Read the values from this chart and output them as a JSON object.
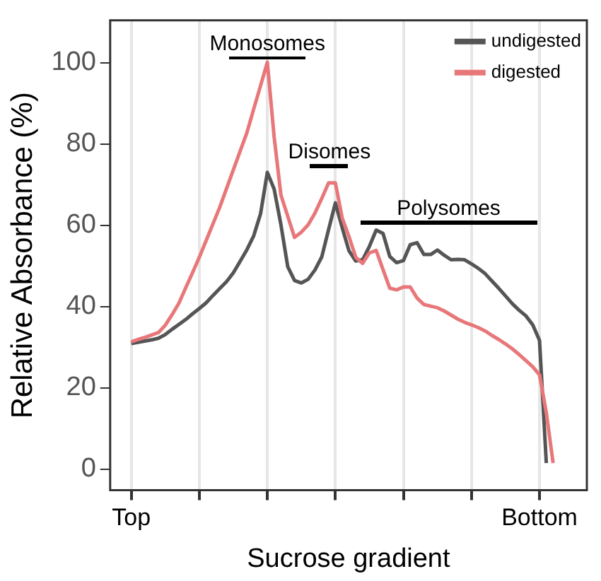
{
  "chart_data": {
    "type": "line",
    "xlabel": "Sucrose gradient",
    "ylabel": "Relative Absorbance (%)",
    "categories": [
      "Top",
      null,
      null,
      null,
      null,
      null,
      null,
      null,
      null,
      null,
      null,
      null,
      null,
      null,
      null,
      null,
      null,
      null,
      null,
      null,
      null,
      null,
      null,
      null,
      null,
      null,
      null,
      null,
      null,
      null,
      null,
      null,
      null,
      null,
      null,
      null,
      null,
      null,
      null,
      null,
      null,
      null,
      null,
      null,
      null,
      null,
      null,
      null,
      null,
      null,
      null,
      null,
      null,
      null,
      null,
      null,
      null,
      null,
      null,
      null,
      "Bottom",
      null,
      null
    ],
    "ylim": [
      -5.2,
      110.4
    ],
    "yticks": [
      0,
      20,
      40,
      60,
      80,
      100
    ],
    "grid": "x",
    "legend": "top right",
    "marker": "none",
    "line_style": "solid",
    "annotations": [
      "Monosomes",
      "Disomes",
      "Polysomes"
    ],
    "series": [
      {
        "name": "undigested",
        "color": "#555555",
        "values": [
          30.9,
          31.2,
          31.5,
          31.8,
          32.2,
          33.1,
          34.4,
          35.6,
          36.8,
          38.2,
          39.5,
          40.9,
          42.7,
          44.4,
          46.1,
          48.3,
          51.1,
          54.0,
          57.4,
          62.8,
          73.0,
          68.9,
          60.1,
          49.8,
          46.4,
          45.8,
          46.7,
          49.0,
          52.2,
          58.9,
          65.5,
          59.4,
          53.7,
          51.2,
          51.5,
          54.8,
          58.8,
          58.0,
          52.3,
          50.8,
          51.3,
          55.2,
          55.7,
          52.8,
          52.8,
          53.9,
          52.6,
          51.5,
          51.6,
          51.5,
          50.5,
          49.4,
          48.1,
          46.3,
          44.5,
          42.6,
          40.7,
          39.1,
          37.7,
          35.5,
          31.7,
          1.5,
          null
        ]
      },
      {
        "name": "digested",
        "color": "#e8777a",
        "values": [
          31.3,
          31.9,
          32.4,
          33.0,
          33.6,
          35.4,
          38.0,
          40.8,
          44.6,
          48.3,
          52.1,
          56.2,
          60.3,
          64.4,
          69.0,
          73.6,
          78.2,
          82.8,
          88.6,
          94.3,
          100.1,
          81.7,
          67.4,
          62.2,
          57.0,
          58.3,
          60.1,
          63.0,
          66.6,
          70.4,
          70.4,
          61.8,
          57.2,
          52.1,
          50.6,
          53.2,
          53.8,
          49.1,
          44.5,
          44.1,
          44.8,
          44.8,
          42.1,
          40.5,
          40.1,
          39.7,
          38.9,
          37.9,
          36.9,
          36.1,
          35.5,
          34.8,
          34.0,
          32.9,
          31.9,
          30.8,
          29.6,
          28.2,
          26.7,
          25.2,
          23.2,
          13.9,
          1.5
        ]
      }
    ]
  }
}
